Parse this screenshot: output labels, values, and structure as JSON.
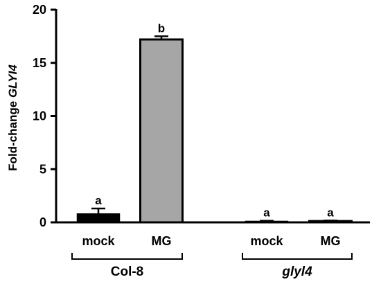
{
  "chart_data": {
    "type": "bar",
    "ylabel": {
      "prefix": "Fold-change ",
      "gene": "GLYI4"
    },
    "ylim": [
      0,
      20
    ],
    "yticks": [
      0,
      5,
      10,
      15,
      20
    ],
    "groups": [
      {
        "label": "Col-8",
        "italic": false
      },
      {
        "label": "glyl4",
        "italic": true
      }
    ],
    "bars": [
      {
        "group": 0,
        "category": "mock",
        "value": 0.8,
        "error": 0.5,
        "sig": "a",
        "color": "#000000"
      },
      {
        "group": 0,
        "category": "MG",
        "value": 17.2,
        "error": 0.3,
        "sig": "b",
        "color": "#a6a6a6"
      },
      {
        "group": 1,
        "category": "mock",
        "value": 0.1,
        "error": 0.05,
        "sig": "a",
        "color": "#000000"
      },
      {
        "group": 1,
        "category": "MG",
        "value": 0.12,
        "error": 0.05,
        "sig": "a",
        "color": "#a6a6a6"
      }
    ],
    "grid": false,
    "legend": false
  }
}
